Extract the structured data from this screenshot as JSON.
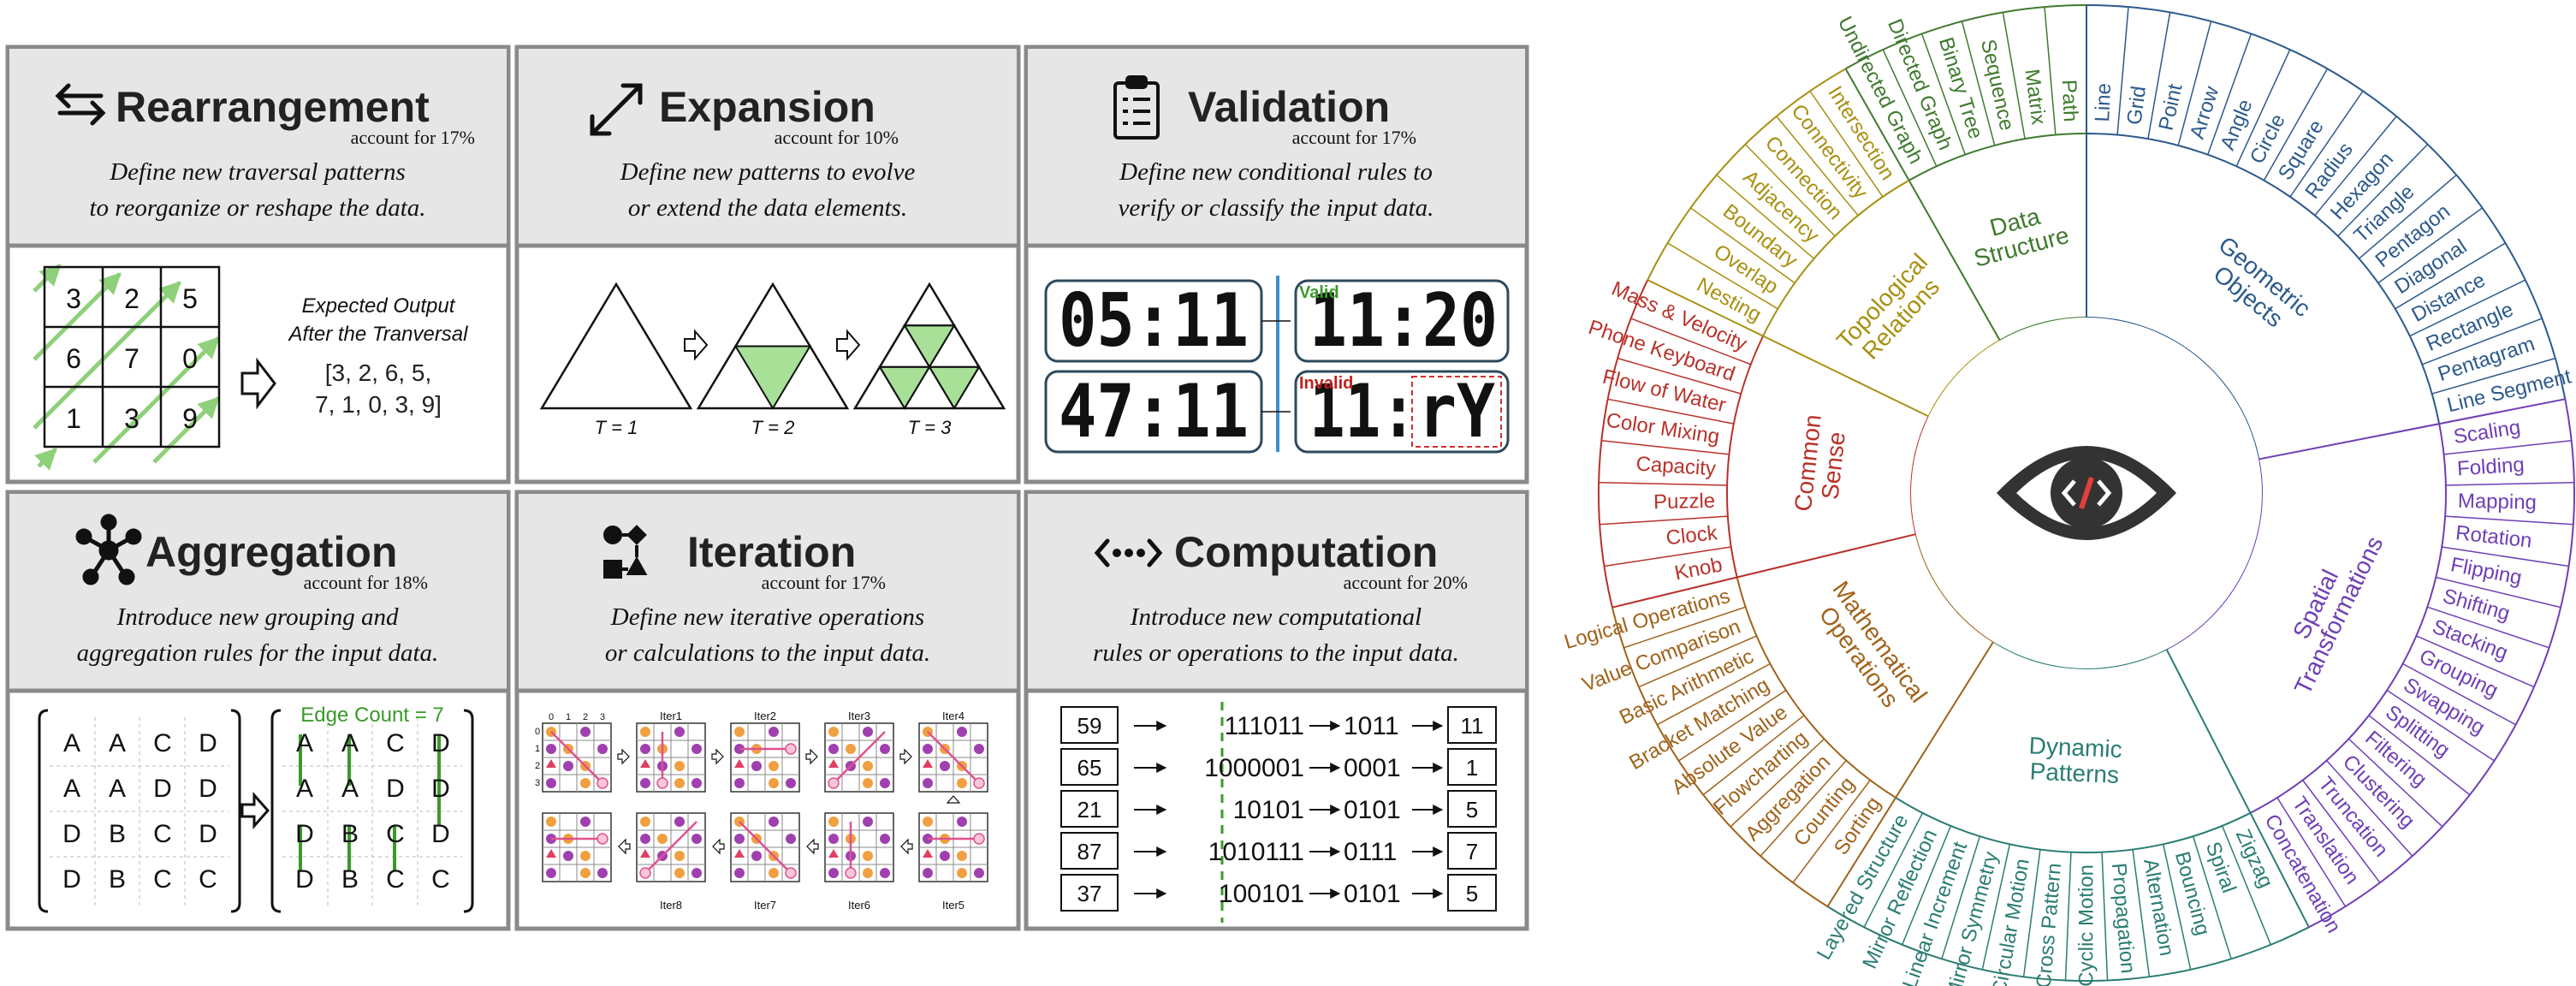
{
  "panels": [
    {
      "key": "rearrangement",
      "title": "Rearrangement",
      "share": "account for 17%",
      "desc1": "Define new traversal patterns",
      "desc2": "to reorganize or reshape the data.",
      "icon": "swap-arrows-icon"
    },
    {
      "key": "expansion",
      "title": "Expansion",
      "share": "account for 10%",
      "desc1": "Define new patterns to evolve",
      "desc2": "or extend the data elements.",
      "icon": "diagonal-expand-icon"
    },
    {
      "key": "validation",
      "title": "Validation",
      "share": "account for 17%",
      "desc1": "Define new conditional rules to",
      "desc2": "verify or classify the input data.",
      "icon": "clipboard-checklist-icon"
    },
    {
      "key": "aggregation",
      "title": "Aggregation",
      "share": "account for 18%",
      "desc1": "Introduce new grouping and",
      "desc2": "aggregation rules for the input data.",
      "icon": "hub-nodes-icon"
    },
    {
      "key": "iteration",
      "title": "Iteration",
      "share": "account for 17%",
      "desc1": "Define new iterative operations",
      "desc2": "or calculations to the input data.",
      "icon": "iteration-cycle-icon"
    },
    {
      "key": "computation",
      "title": "Computation",
      "share": "account for 20%",
      "desc1": "Introduce new computational",
      "desc2": "rules  or operations to the input data.",
      "icon": "code-arrows-icon"
    }
  ],
  "rearrangement": {
    "grid": [
      [
        "3",
        "2",
        "5"
      ],
      [
        "6",
        "7",
        "0"
      ],
      [
        "1",
        "3",
        "9"
      ]
    ],
    "label1": "Expected Output",
    "label2": "After the Tranversal",
    "out1": "[3, 2, 6, 5,",
    "out2": "7, 1, 0, 3, 9]"
  },
  "expansion": {
    "t1": "T = 1",
    "t2": "T = 2",
    "t3": "T = 3"
  },
  "validation": {
    "top_left": "05:11",
    "top_right": "11:20",
    "bot_left": "47:11",
    "bot_right": "11:",
    "bot_right_glyphs": "rY",
    "valid": "Valid",
    "invalid": "Invalid"
  },
  "aggregation": {
    "left": [
      [
        "A",
        "A",
        "C",
        "D"
      ],
      [
        "A",
        "A",
        "D",
        "D"
      ],
      [
        "D",
        "B",
        "C",
        "D"
      ],
      [
        "D",
        "B",
        "C",
        "C"
      ]
    ],
    "right": [
      [
        "A",
        "A",
        "C",
        "D"
      ],
      [
        "A",
        "A",
        "D",
        "D"
      ],
      [
        "D",
        "B",
        "C",
        "D"
      ],
      [
        "D",
        "B",
        "C",
        "C"
      ]
    ],
    "edge_label": "Edge Count = 7"
  },
  "iteration": {
    "top": [
      "Iter1",
      "Iter2",
      "Iter3",
      "Iter4"
    ],
    "bottom": [
      "Iter8",
      "Iter7",
      "Iter6",
      "Iter5"
    ],
    "axis_nums": [
      "0",
      "1",
      "2",
      "3"
    ]
  },
  "computation": {
    "rows": [
      {
        "in": "59",
        "bin": "111011",
        "short": "1011",
        "out": "11"
      },
      {
        "in": "65",
        "bin": "1000001",
        "short": "0001",
        "out": "1"
      },
      {
        "in": "21",
        "bin": "10101",
        "short": "0101",
        "out": "5"
      },
      {
        "in": "87",
        "bin": "1010111",
        "short": "0111",
        "out": "7"
      },
      {
        "in": "37",
        "bin": "100101",
        "short": "0101",
        "out": "5"
      }
    ]
  },
  "wheel": {
    "center_icon": "eye-code-icon",
    "categories": [
      {
        "name": [
          "Data",
          "Structure"
        ],
        "color": "#3f7a2e",
        "items": [
          "Undirected Graph",
          "Directed Graph",
          "Binary Tree",
          "Sequence",
          "Matrix",
          "Path"
        ]
      },
      {
        "name": [
          "Geometric",
          "Objects"
        ],
        "color": "#2c5a8c",
        "items": [
          "Line",
          "Grid",
          "Point",
          "Arrow",
          "Angle",
          "Circle",
          "Square",
          "Radius",
          "Hexagon",
          "Triangle",
          "Pentagon",
          "Diagonal",
          "Distance",
          "Rectangle",
          "Pentagram",
          "Line Segment"
        ]
      },
      {
        "name": [
          "Spatial",
          "Transformations"
        ],
        "color": "#6f3fb5",
        "items": [
          "Scaling",
          "Folding",
          "Mapping",
          "Rotation",
          "Flipping",
          "Shifting",
          "Stacking",
          "Grouping",
          "Swapping",
          "Splitting",
          "Filtering",
          "Clustering",
          "Truncation",
          "Translation",
          "Concatenation"
        ]
      },
      {
        "name": [
          "Dynamic",
          "Patterns"
        ],
        "color": "#2a7d73",
        "items": [
          "Zigzag",
          "Spiral",
          "Bouncing",
          "Alternation",
          "Propagation",
          "Cyclic Motion",
          "Cross Pattern",
          "Circular Motion",
          "Mirror Symmetry",
          "Linear Increment",
          "Mirror Reflection",
          "Layered Structure"
        ]
      },
      {
        "name": [
          "Mathematical",
          "Operations"
        ],
        "color": "#a0621a",
        "items": [
          "Sorting",
          "Counting",
          "Aggregation",
          "Flowcharting",
          "Absolute Value",
          "Bracket Matching",
          "Basic Arithmetic",
          "Value Comparison",
          "Logical Operations"
        ]
      },
      {
        "name": [
          "Common",
          "Sense"
        ],
        "color": "#b8322a",
        "items": [
          "Knob",
          "Clock",
          "Puzzle",
          "Capacity",
          "Color Mixing",
          "Flow of Water",
          "Phone Keyboard",
          "Mass & Velocity"
        ]
      },
      {
        "name": [
          "Topological",
          "Relations"
        ],
        "color": "#a89010",
        "items": [
          "Nesting",
          "Overlap",
          "Boundary",
          "Adjacency",
          "Connection",
          "Connectivity",
          "Intersection"
        ]
      }
    ]
  }
}
